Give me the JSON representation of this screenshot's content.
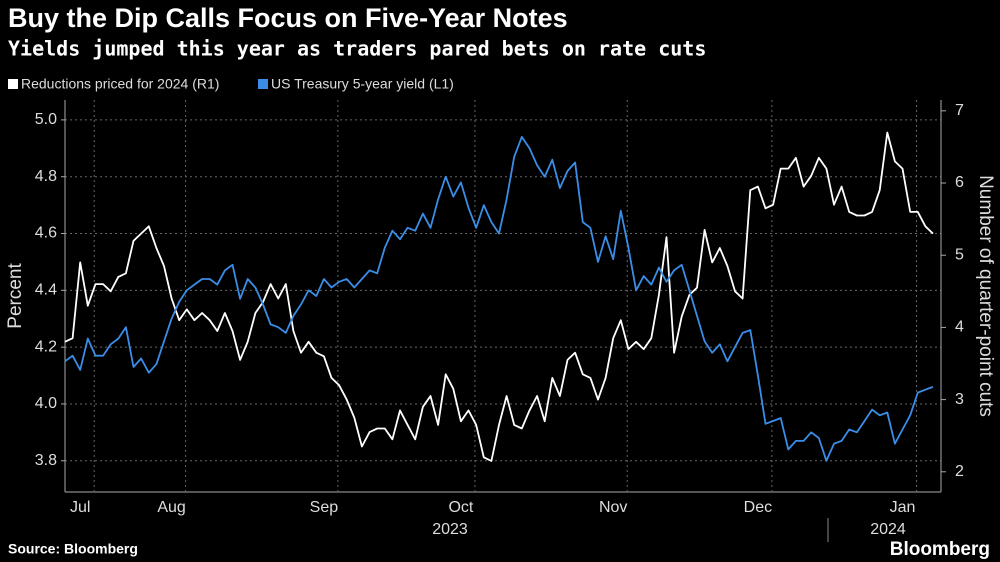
{
  "chart_data": {
    "type": "line",
    "title": "Buy the Dip Calls Focus on Five-Year Notes",
    "subtitle": "Yields jumped this year as traders pared bets on rate cuts",
    "ylabel": "Percent",
    "y2label": "Number of quarter-point cuts",
    "source": "Source: Bloomberg",
    "brand": "Bloomberg",
    "grid": true,
    "legend": "top-left",
    "categories": [
      null,
      null,
      "Jul",
      null,
      null,
      null,
      null,
      null,
      null,
      null,
      null,
      null,
      null,
      null,
      "Aug",
      null,
      null,
      null,
      null,
      null,
      null,
      null,
      null,
      null,
      null,
      null,
      null,
      null,
      null,
      null,
      null,
      null,
      null,
      null,
      "Sep",
      null,
      null,
      null,
      null,
      null,
      null,
      null,
      null,
      null,
      null,
      null,
      null,
      null,
      null,
      null,
      null,
      null,
      "Oct",
      null,
      null,
      null,
      null,
      null,
      null,
      null,
      null,
      null,
      null,
      null,
      null,
      null,
      null,
      null,
      null,
      null,
      null,
      null,
      "Nov",
      null,
      null,
      null,
      null,
      null,
      null,
      null,
      null,
      null,
      null,
      null,
      null,
      null,
      null,
      null,
      null,
      null,
      null,
      "Dec",
      null,
      null,
      null,
      null,
      null,
      null,
      null,
      null,
      null,
      null,
      null,
      null,
      null,
      null,
      null,
      null,
      null,
      null,
      "Jan",
      null,
      null,
      null,
      null
    ],
    "x_group_labels": [
      "2023",
      "2024"
    ],
    "series": [
      {
        "name": "Reductions priced for 2024 (R1)",
        "color": "#ffffff",
        "axis": "y2",
        "values": [
          3.8,
          3.85,
          4.9,
          4.3,
          4.6,
          4.6,
          4.5,
          4.7,
          4.75,
          5.2,
          5.3,
          5.4,
          5.1,
          4.85,
          4.4,
          4.1,
          4.25,
          4.1,
          4.2,
          4.1,
          3.95,
          4.2,
          3.95,
          3.55,
          3.8,
          4.2,
          4.35,
          4.6,
          4.4,
          4.6,
          3.95,
          3.65,
          3.8,
          3.65,
          3.6,
          3.3,
          3.2,
          3.0,
          2.75,
          2.35,
          2.55,
          2.6,
          2.6,
          2.45,
          2.85,
          2.65,
          2.45,
          2.9,
          3.05,
          2.65,
          3.35,
          3.15,
          2.7,
          2.85,
          2.65,
          2.2,
          2.15,
          2.65,
          3.05,
          2.65,
          2.6,
          2.85,
          3.05,
          2.7,
          3.3,
          3.05,
          3.55,
          3.65,
          3.35,
          3.3,
          3.0,
          3.3,
          3.85,
          4.1,
          3.7,
          3.8,
          3.7,
          3.85,
          4.45,
          5.25,
          3.65,
          4.15,
          4.45,
          4.55,
          5.35,
          4.9,
          5.1,
          4.85,
          4.5,
          4.4,
          5.9,
          5.95,
          5.65,
          5.7,
          6.2,
          6.2,
          6.35,
          5.95,
          6.1,
          6.35,
          6.2,
          5.7,
          5.95,
          5.6,
          5.55,
          5.55,
          5.6,
          5.9,
          6.7,
          6.3,
          6.2,
          5.6,
          5.6,
          5.4,
          5.3
        ]
      },
      {
        "name": "US Treasury 5-year yield (L1)",
        "color": "#3b8ee8",
        "axis": "y",
        "values": [
          4.15,
          4.17,
          4.12,
          4.23,
          4.17,
          4.17,
          4.21,
          4.23,
          4.27,
          4.13,
          4.16,
          4.11,
          4.14,
          4.22,
          4.3,
          4.36,
          4.4,
          4.42,
          4.44,
          4.44,
          4.42,
          4.47,
          4.49,
          4.37,
          4.44,
          4.41,
          4.35,
          4.28,
          4.27,
          4.25,
          4.31,
          4.35,
          4.4,
          4.38,
          4.44,
          4.41,
          4.43,
          4.44,
          4.41,
          4.44,
          4.47,
          4.46,
          4.55,
          4.61,
          4.58,
          4.62,
          4.61,
          4.67,
          4.62,
          4.72,
          4.8,
          4.73,
          4.78,
          4.69,
          4.62,
          4.7,
          4.64,
          4.6,
          4.72,
          4.87,
          4.94,
          4.9,
          4.84,
          4.8,
          4.86,
          4.76,
          4.82,
          4.85,
          4.64,
          4.62,
          4.5,
          4.59,
          4.51,
          4.68,
          4.55,
          4.4,
          4.45,
          4.42,
          4.48,
          4.43,
          4.47,
          4.49,
          4.4,
          4.31,
          4.22,
          4.18,
          4.21,
          4.15,
          4.2,
          4.25,
          4.26,
          4.1,
          3.93,
          3.94,
          3.95,
          3.84,
          3.87,
          3.87,
          3.9,
          3.88,
          3.8,
          3.86,
          3.87,
          3.91,
          3.9,
          3.94,
          3.98,
          3.96,
          3.97,
          3.86,
          3.91,
          3.96,
          4.04,
          4.05,
          4.06
        ]
      }
    ],
    "ylim": [
      3.69,
      5.07
    ],
    "yticks": [
      3.8,
      {
        "value": 4.0,
        "label": "4.0"
      },
      4.2,
      4.4,
      4.6,
      4.8,
      {
        "value": 5.0,
        "label": "5.0"
      }
    ],
    "y2lim": [
      1.72,
      7.15
    ],
    "y2ticks": [
      2,
      3,
      4,
      5,
      6,
      7
    ]
  }
}
